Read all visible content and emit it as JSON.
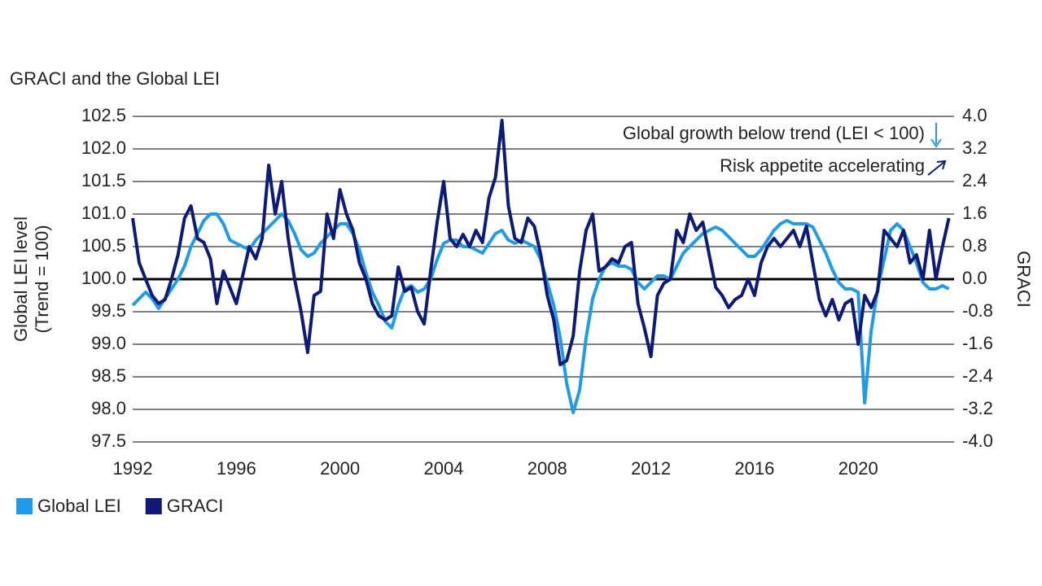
{
  "chart_data": {
    "type": "line",
    "title": "GRACI and the Global LEI",
    "y_label": [
      "Global LEI level",
      "(Trend = 100)"
    ],
    "y2_label": "GRACI",
    "annotations": [
      {
        "text": "Global growth below trend (LEI < 100)",
        "color": "#1e9be9"
      },
      {
        "text": "Risk appetite accelerating",
        "color": "#0d1a78"
      }
    ],
    "reference_line": 100,
    "grid": true,
    "legend": "bottom-left",
    "x": [
      1992,
      1992.25,
      1992.5,
      1992.75,
      1993,
      1993.25,
      1993.5,
      1993.75,
      1994,
      1994.25,
      1994.5,
      1994.75,
      1995,
      1995.25,
      1995.5,
      1995.75,
      1996,
      1996.25,
      1996.5,
      1996.75,
      1997,
      1997.25,
      1997.5,
      1997.75,
      1998,
      1998.25,
      1998.5,
      1998.75,
      1999,
      1999.25,
      1999.5,
      1999.75,
      2000,
      2000.25,
      2000.5,
      2000.75,
      2001,
      2001.25,
      2001.5,
      2001.75,
      2002,
      2002.25,
      2002.5,
      2002.75,
      2003,
      2003.25,
      2003.5,
      2003.75,
      2004,
      2004.25,
      2004.5,
      2004.75,
      2005,
      2005.25,
      2005.5,
      2005.75,
      2006,
      2006.25,
      2006.5,
      2006.75,
      2007,
      2007.25,
      2007.5,
      2007.75,
      2008,
      2008.25,
      2008.5,
      2008.75,
      2009,
      2009.25,
      2009.5,
      2009.75,
      2010,
      2010.25,
      2010.5,
      2010.75,
      2011,
      2011.25,
      2011.5,
      2011.75,
      2012,
      2012.25,
      2012.5,
      2012.75,
      2013,
      2013.25,
      2013.5,
      2013.75,
      2014,
      2014.25,
      2014.5,
      2014.75,
      2015,
      2015.25,
      2015.5,
      2015.75,
      2016,
      2016.25,
      2016.5,
      2016.75,
      2017,
      2017.25,
      2017.5,
      2017.75,
      2018,
      2018.25,
      2018.5,
      2018.75,
      2019,
      2019.25,
      2019.5,
      2019.75,
      2020,
      2020.25,
      2020.5,
      2020.75,
      2021,
      2021.25,
      2021.5,
      2021.75,
      2022,
      2022.25,
      2022.5,
      2022.75,
      2023,
      2023.25,
      2023.5
    ],
    "xlim": [
      1992,
      2023.7
    ],
    "xticks": [
      1992,
      1996,
      2000,
      2004,
      2008,
      2012,
      2016,
      2020
    ],
    "ylim": [
      97.5,
      102.5
    ],
    "yticks": [
      {
        "value": 97.5,
        "label": "97.5"
      },
      {
        "value": 98,
        "label": "98.0"
      },
      {
        "value": 98.5,
        "label": "98.5"
      },
      {
        "value": 99,
        "label": "99.0"
      },
      {
        "value": 99.5,
        "label": "99.5"
      },
      {
        "value": 100,
        "label": "100.0"
      },
      {
        "value": 100.5,
        "label": "100.5"
      },
      {
        "value": 101,
        "label": "101.0"
      },
      {
        "value": 101.5,
        "label": "101.5"
      },
      {
        "value": 102,
        "label": "102.0"
      },
      {
        "value": 102.5,
        "label": "102.5"
      }
    ],
    "y2lim": [
      -4,
      4
    ],
    "y2ticks": [
      {
        "value": -4,
        "label": "-4.0"
      },
      {
        "value": -3.2,
        "label": "-3.2"
      },
      {
        "value": -2.4,
        "label": "-2.4"
      },
      {
        "value": -1.6,
        "label": "-1.6"
      },
      {
        "value": -0.8,
        "label": "-0.8"
      },
      {
        "value": 0,
        "label": "0.0"
      },
      {
        "value": 0.8,
        "label": "0.8"
      },
      {
        "value": 1.6,
        "label": "1.6"
      },
      {
        "value": 2.4,
        "label": "2.4"
      },
      {
        "value": 3.2,
        "label": "3.2"
      },
      {
        "value": 4,
        "label": "4.0"
      }
    ],
    "series": [
      {
        "name": "Global LEI",
        "color": "#1e9be9",
        "values": [
          99.6,
          99.7,
          99.8,
          99.7,
          99.55,
          99.7,
          99.85,
          100.0,
          100.2,
          100.5,
          100.7,
          100.9,
          101.0,
          101.0,
          100.85,
          100.6,
          100.55,
          100.5,
          100.45,
          100.6,
          100.7,
          100.8,
          100.9,
          101.0,
          100.9,
          100.7,
          100.45,
          100.35,
          100.4,
          100.55,
          100.65,
          100.75,
          100.85,
          100.85,
          100.7,
          100.45,
          100.1,
          99.8,
          99.6,
          99.35,
          99.25,
          99.6,
          99.85,
          99.9,
          99.8,
          99.85,
          100.0,
          100.3,
          100.55,
          100.6,
          100.6,
          100.5,
          100.5,
          100.45,
          100.4,
          100.55,
          100.7,
          100.75,
          100.6,
          100.55,
          100.6,
          100.55,
          100.5,
          100.3,
          99.95,
          99.6,
          99.1,
          98.4,
          97.95,
          98.3,
          99.1,
          99.7,
          100.0,
          100.2,
          100.25,
          100.2,
          100.2,
          100.15,
          99.95,
          99.85,
          99.95,
          100.05,
          100.05,
          100.0,
          100.2,
          100.4,
          100.5,
          100.6,
          100.7,
          100.75,
          100.8,
          100.75,
          100.65,
          100.55,
          100.45,
          100.35,
          100.35,
          100.45,
          100.6,
          100.75,
          100.85,
          100.9,
          100.85,
          100.85,
          100.85,
          100.8,
          100.6,
          100.4,
          100.15,
          99.95,
          99.85,
          99.85,
          99.8,
          98.1,
          99.2,
          99.85,
          100.3,
          100.75,
          100.85,
          100.75,
          100.5,
          100.25,
          99.95,
          99.85,
          99.85,
          99.9,
          99.85
        ]
      },
      {
        "name": "GRACI",
        "color": "#0d1a78",
        "axis": "y2",
        "values": [
          1.5,
          0.4,
          0.0,
          -0.4,
          -0.6,
          -0.5,
          0.0,
          0.6,
          1.5,
          1.8,
          1.0,
          0.9,
          0.5,
          -0.6,
          0.2,
          -0.2,
          -0.6,
          0.1,
          0.8,
          0.5,
          1.0,
          2.8,
          1.6,
          2.4,
          1.0,
          0.0,
          -0.8,
          -1.8,
          -0.4,
          -0.3,
          1.6,
          1.0,
          2.2,
          1.6,
          1.2,
          0.4,
          0.0,
          -0.6,
          -0.9,
          -1.0,
          -0.9,
          0.3,
          -0.3,
          -0.2,
          -0.8,
          -1.1,
          0.2,
          1.4,
          2.4,
          1.0,
          0.8,
          1.1,
          0.8,
          1.2,
          0.9,
          2.0,
          2.5,
          3.9,
          1.8,
          1.0,
          0.9,
          1.5,
          1.3,
          0.6,
          -0.4,
          -1.0,
          -2.1,
          -2.0,
          -1.4,
          0.2,
          1.2,
          1.6,
          0.2,
          0.3,
          0.5,
          0.4,
          0.8,
          0.9,
          -0.6,
          -1.2,
          -1.9,
          -0.4,
          -0.1,
          0.0,
          1.2,
          0.9,
          1.6,
          1.2,
          1.4,
          0.6,
          -0.2,
          -0.4,
          -0.7,
          -0.5,
          -0.4,
          0.0,
          -0.4,
          0.4,
          0.8,
          1.0,
          0.8,
          1.0,
          1.2,
          0.8,
          1.3,
          0.4,
          -0.5,
          -0.9,
          -0.5,
          -1.0,
          -0.6,
          -0.5,
          -1.6,
          -0.4,
          -0.7,
          -0.3,
          1.2,
          1.0,
          0.8,
          1.2,
          0.4,
          0.6,
          0.0,
          1.2,
          0.0,
          0.8,
          1.5
        ]
      }
    ]
  }
}
